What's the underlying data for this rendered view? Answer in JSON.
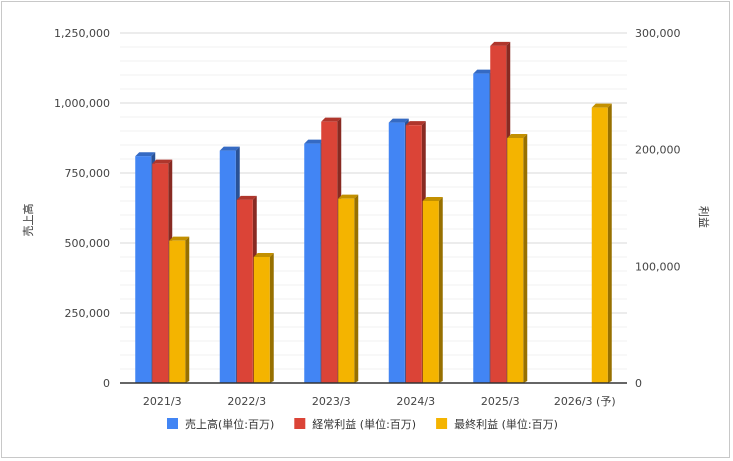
{
  "chart_data": {
    "type": "bar",
    "style": "3d-grouped",
    "categories": [
      "2021/3",
      "2022/3",
      "2023/3",
      "2024/3",
      "2025/3",
      "2026/3 (予)"
    ],
    "y_left": {
      "label": "売上高",
      "ylim": [
        0,
        1250000
      ],
      "ticks": [
        0,
        250000,
        500000,
        750000,
        1000000,
        1250000
      ],
      "tick_labels": [
        "0",
        "250,000",
        "500,000",
        "750,000",
        "1,000,000",
        "1,250,000"
      ]
    },
    "y_right": {
      "label": "利益",
      "ylim": [
        0,
        300000
      ],
      "ticks": [
        0,
        100000,
        200000,
        300000
      ],
      "tick_labels": [
        "0",
        "100,000",
        "200,000",
        "300,000"
      ]
    },
    "series": [
      {
        "name": "売上高(単位:百万)",
        "axis": "left",
        "color": "#4285f4",
        "values": [
          810000,
          830000,
          855000,
          930000,
          1105000,
          null
        ]
      },
      {
        "name": "経常利益 (単位:百万)",
        "axis": "right",
        "color": "#db4437",
        "values": [
          188000,
          157000,
          224000,
          221000,
          289000,
          null
        ]
      },
      {
        "name": "最終利益 (単位:百万)",
        "axis": "right",
        "color": "#f4b400",
        "values": [
          122000,
          108000,
          158000,
          156000,
          210000,
          236000
        ]
      }
    ],
    "grid": true,
    "legend_position": "bottom"
  }
}
